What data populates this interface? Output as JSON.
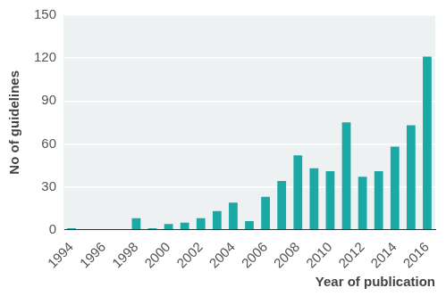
{
  "chart_data": {
    "type": "bar",
    "x_label": "Year of publication",
    "y_label": "No of guidelines",
    "categories": [
      "1994",
      null,
      "1996",
      null,
      "1998",
      null,
      "2000",
      null,
      "2002",
      null,
      "2004",
      null,
      "2006",
      null,
      "2008",
      null,
      "2010",
      null,
      "2012",
      null,
      "2014",
      null,
      "2016"
    ],
    "values": [
      1,
      0,
      0,
      0,
      8,
      1,
      4,
      5,
      8,
      13,
      19,
      6,
      23,
      34,
      52,
      43,
      41,
      75,
      37,
      41,
      58,
      73,
      121
    ],
    "color": "#1aa9a5",
    "ylim": [
      0,
      150
    ],
    "yticks": [
      0,
      30,
      60,
      90,
      120,
      150
    ],
    "grid": true
  }
}
